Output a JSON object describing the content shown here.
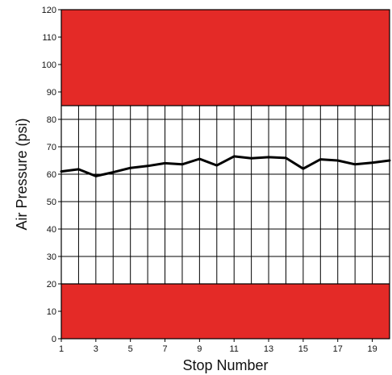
{
  "chart_data": {
    "type": "line",
    "xlabel": "Stop Number",
    "ylabel": "Air Pressure (psi)",
    "xlim": [
      1,
      20
    ],
    "ylim": [
      0,
      120
    ],
    "xticks": [
      1,
      3,
      5,
      7,
      9,
      11,
      13,
      15,
      17,
      19
    ],
    "yticks": [
      0,
      10,
      20,
      30,
      40,
      50,
      60,
      70,
      80,
      90,
      100,
      110,
      120
    ],
    "grid": true,
    "danger_zones": [
      {
        "from": 85,
        "to": 120,
        "color": "#e42a27"
      },
      {
        "from": 0,
        "to": 20,
        "color": "#e42a27"
      }
    ],
    "series": [
      {
        "x": [
          1,
          2,
          3,
          4,
          5,
          6,
          7,
          8,
          9,
          10,
          11,
          12,
          13,
          14,
          15,
          16,
          17,
          18,
          19,
          20
        ],
        "values": [
          61,
          61.8,
          59.3,
          60.7,
          62.3,
          63,
          64,
          63.6,
          65.6,
          63.2,
          66.5,
          65.8,
          66.2,
          65.9,
          62,
          65.4,
          65,
          63.6,
          64.2,
          65
        ],
        "color": "#000000"
      }
    ]
  }
}
